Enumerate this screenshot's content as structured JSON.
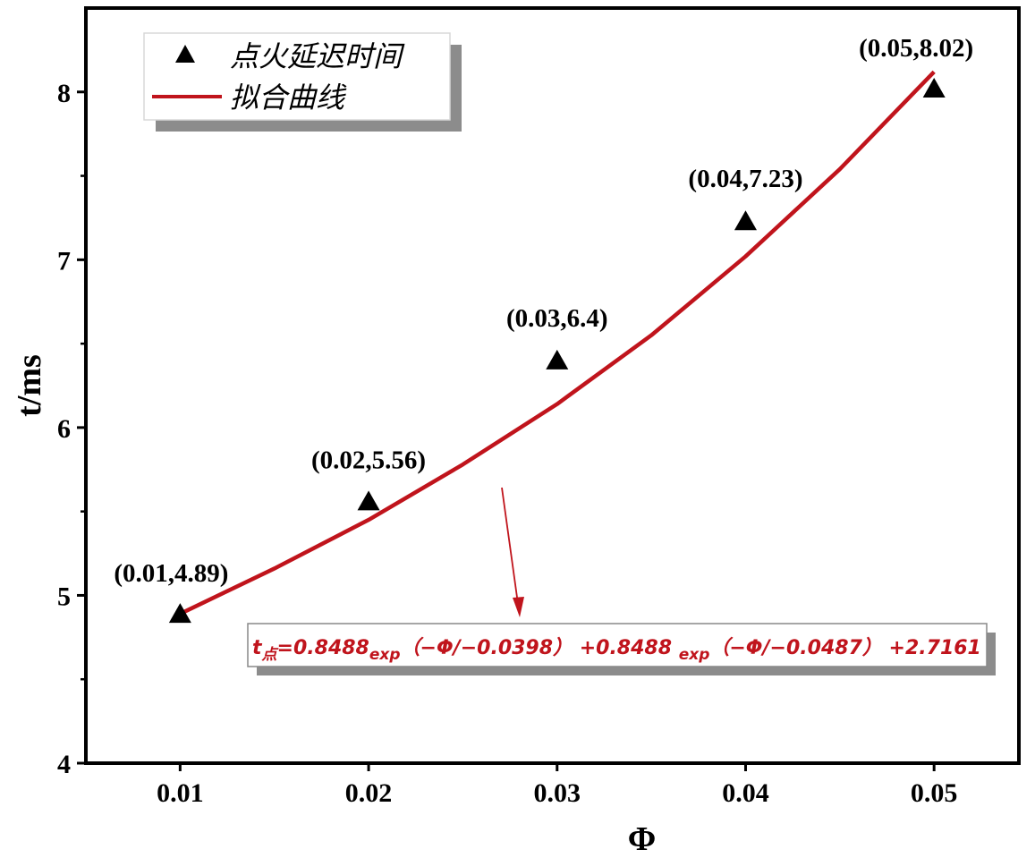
{
  "chart_data": {
    "type": "scatter",
    "xlabel": "Φ",
    "ylabel": "t/ms",
    "xlim": [
      0.005,
      0.0545
    ],
    "ylim": [
      4,
      8.5
    ],
    "x_ticks": [
      "0.01",
      "0.02",
      "0.03",
      "0.04",
      "0.05"
    ],
    "y_ticks": [
      "4",
      "5",
      "6",
      "7",
      "8"
    ],
    "grid": false,
    "legend_position": "top-left",
    "colors": {
      "points": "#000000",
      "fit": "#c0141c",
      "equation": "#c0141c",
      "arrow": "#c0141c"
    },
    "series": [
      {
        "name": "点火延迟时间",
        "kind": "scatter",
        "marker": "triangle",
        "x": [
          0.01,
          0.02,
          0.03,
          0.04,
          0.05
        ],
        "y": [
          4.89,
          5.56,
          6.4,
          7.23,
          8.02
        ]
      },
      {
        "name": "拟合曲线",
        "kind": "line",
        "x": [
          0.01,
          0.015,
          0.02,
          0.025,
          0.03,
          0.035,
          0.04,
          0.045,
          0.05
        ],
        "y": [
          4.89,
          5.16,
          5.45,
          5.78,
          6.14,
          6.55,
          7.02,
          7.54,
          8.12
        ]
      }
    ],
    "annotations": [
      {
        "text": "(0.01,4.89)",
        "x": 0.01,
        "y": 4.89
      },
      {
        "text": "(0.02,5.56)",
        "x": 0.02,
        "y": 5.56
      },
      {
        "text": "(0.03,6.4)",
        "x": 0.03,
        "y": 6.4
      },
      {
        "text": "(0.04,7.23)",
        "x": 0.04,
        "y": 7.23
      },
      {
        "text": "(0.05,8.02)",
        "x": 0.05,
        "y": 8.02
      }
    ],
    "equation": {
      "t": "t",
      "t_sub": "点",
      "part1": "=0.8488",
      "exp1": "exp",
      "part2": "（−Φ/−0.0398） +0.8488 ",
      "exp2": "exp",
      "part3": "（−Φ/−0.0487） +2.7161"
    }
  }
}
